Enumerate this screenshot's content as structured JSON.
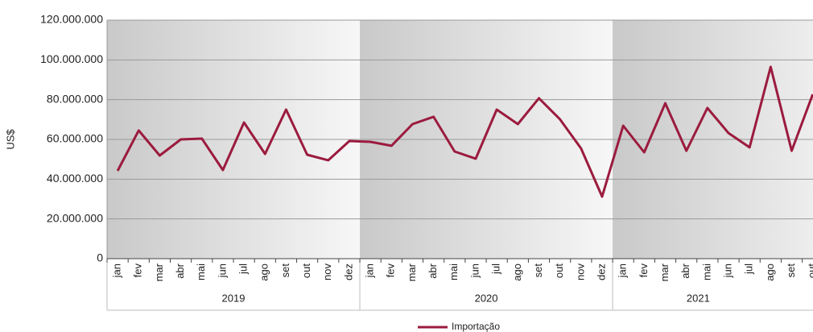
{
  "chart_data": {
    "type": "line",
    "y_label": "US$",
    "categories": [
      "jan",
      "fev",
      "mar",
      "abr",
      "mai",
      "jun",
      "jul",
      "ago",
      "set",
      "out",
      "nov",
      "dez",
      "jan",
      "fev",
      "mar",
      "abr",
      "mai",
      "jun",
      "jul",
      "ago",
      "set",
      "out",
      "nov",
      "dez",
      "jan",
      "fev",
      "mar",
      "abr",
      "mai",
      "jun",
      "jul",
      "ago",
      "set",
      "out"
    ],
    "groups": [
      {
        "label": "2019",
        "count": 12
      },
      {
        "label": "2020",
        "count": 12
      },
      {
        "label": "2021",
        "count": 10
      }
    ],
    "series": [
      {
        "name": "Importação",
        "color": "#9b1b3e",
        "values": [
          44200000,
          64500000,
          51900000,
          60000000,
          60400000,
          44600000,
          68500000,
          52700000,
          75000000,
          52300000,
          49500000,
          59200000,
          58800000,
          56800000,
          67700000,
          71400000,
          53900000,
          50300000,
          75000000,
          67700000,
          80700000,
          70100000,
          55500000,
          31200000,
          66900000,
          53500000,
          78200000,
          54300000,
          75800000,
          63200000,
          56000000,
          96500000,
          54300000,
          82700000
        ]
      }
    ],
    "ylim": [
      0,
      120000000
    ],
    "yticks": [
      {
        "value": 0,
        "label": "0"
      },
      {
        "value": 20000000,
        "label": "20.000.000"
      },
      {
        "value": 40000000,
        "label": "40.000.000"
      },
      {
        "value": 60000000,
        "label": "60.000.000"
      },
      {
        "value": 80000000,
        "label": "80.000.000"
      },
      {
        "value": 100000000,
        "label": "100.000.000"
      },
      {
        "value": 120000000,
        "label": "120.000.000"
      }
    ],
    "grid": true,
    "legend": "bottom"
  }
}
